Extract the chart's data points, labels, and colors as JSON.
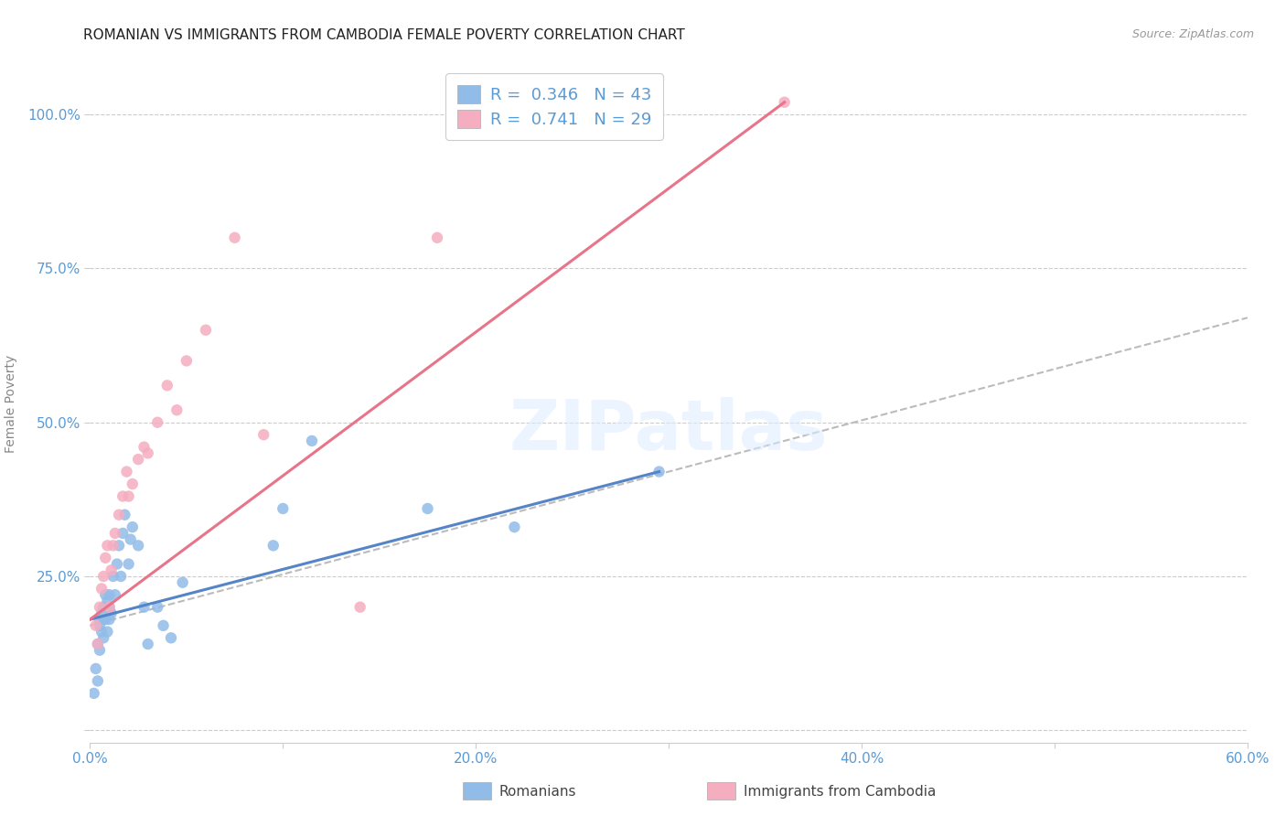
{
  "title": "ROMANIAN VS IMMIGRANTS FROM CAMBODIA FEMALE POVERTY CORRELATION CHART",
  "source": "Source: ZipAtlas.com",
  "ylabel": "Female Poverty",
  "xlim": [
    0.0,
    0.6
  ],
  "ylim": [
    -0.02,
    1.08
  ],
  "xtick_vals": [
    0.0,
    0.1,
    0.2,
    0.3,
    0.4,
    0.5,
    0.6
  ],
  "xtick_labels": [
    "0.0%",
    "",
    "20.0%",
    "",
    "40.0%",
    "",
    "60.0%"
  ],
  "ytick_vals": [
    0.0,
    0.25,
    0.5,
    0.75,
    1.0
  ],
  "ytick_labels": [
    "",
    "25.0%",
    "50.0%",
    "75.0%",
    "100.0%"
  ],
  "grid_yticks": [
    0.0,
    0.25,
    0.5,
    0.75,
    1.0
  ],
  "romanian_color": "#92bce8",
  "cambodia_color": "#f5adc0",
  "romanian_line_color": "#5585c8",
  "cambodia_line_color": "#e8748a",
  "title_color": "#222222",
  "axis_tick_color": "#5b9bd5",
  "ylabel_color": "#888888",
  "legend_text_color": "#5b9bd5",
  "legend_label_1": "Romanians",
  "legend_label_2": "Immigrants from Cambodia",
  "R1": "0.346",
  "N1": "43",
  "R2": "0.741",
  "N2": "29",
  "watermark": "ZIPatlas",
  "source_color": "#999999",
  "romanian_x": [
    0.002,
    0.003,
    0.004,
    0.004,
    0.005,
    0.005,
    0.005,
    0.006,
    0.006,
    0.007,
    0.007,
    0.007,
    0.008,
    0.008,
    0.009,
    0.009,
    0.01,
    0.01,
    0.01,
    0.011,
    0.012,
    0.013,
    0.014,
    0.015,
    0.016,
    0.017,
    0.018,
    0.02,
    0.021,
    0.022,
    0.025,
    0.028,
    0.03,
    0.035,
    0.038,
    0.042,
    0.048,
    0.095,
    0.1,
    0.115,
    0.175,
    0.22,
    0.295
  ],
  "romanian_y": [
    0.06,
    0.1,
    0.14,
    0.08,
    0.17,
    0.13,
    0.18,
    0.16,
    0.19,
    0.15,
    0.18,
    0.2,
    0.18,
    0.22,
    0.16,
    0.21,
    0.2,
    0.22,
    0.18,
    0.19,
    0.25,
    0.22,
    0.27,
    0.3,
    0.25,
    0.32,
    0.35,
    0.27,
    0.31,
    0.33,
    0.3,
    0.2,
    0.14,
    0.2,
    0.17,
    0.15,
    0.24,
    0.3,
    0.36,
    0.47,
    0.36,
    0.33,
    0.42
  ],
  "cambodia_x": [
    0.003,
    0.004,
    0.005,
    0.006,
    0.007,
    0.008,
    0.009,
    0.01,
    0.011,
    0.012,
    0.013,
    0.015,
    0.017,
    0.019,
    0.02,
    0.022,
    0.025,
    0.028,
    0.03,
    0.035,
    0.04,
    0.045,
    0.05,
    0.06,
    0.075,
    0.09,
    0.14,
    0.18,
    0.36
  ],
  "cambodia_y": [
    0.17,
    0.14,
    0.2,
    0.23,
    0.25,
    0.28,
    0.3,
    0.2,
    0.26,
    0.3,
    0.32,
    0.35,
    0.38,
    0.42,
    0.38,
    0.4,
    0.44,
    0.46,
    0.45,
    0.5,
    0.56,
    0.52,
    0.6,
    0.65,
    0.8,
    0.48,
    0.2,
    0.8,
    1.02
  ],
  "blue_line_x": [
    0.0,
    0.295
  ],
  "blue_line_y": [
    0.18,
    0.42
  ],
  "pink_line_x": [
    0.0,
    0.36
  ],
  "pink_line_y": [
    0.18,
    1.02
  ],
  "dash_line_x": [
    0.0,
    0.6
  ],
  "dash_line_y": [
    0.17,
    0.67
  ]
}
